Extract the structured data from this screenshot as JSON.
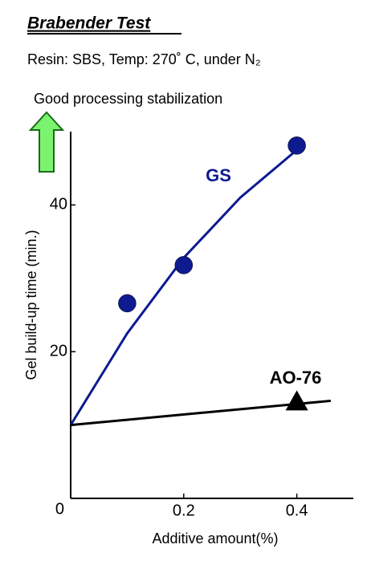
{
  "chart_data": {
    "type": "scatter",
    "title": "Brabender Test",
    "subtitle": "Resin: SBS, Temp: 270˚ C, under N₂",
    "annotation": "Good processing stabilization",
    "x_label": "Additive amount(%)",
    "y_label": "Gel build-up time (min.)",
    "xlim": [
      0,
      0.5
    ],
    "ylim": [
      0,
      50
    ],
    "xticks": [
      0.2,
      0.4
    ],
    "yticks": [
      0,
      20,
      40
    ],
    "series": [
      {
        "name": "GS",
        "color": "#0d1a90",
        "marker": "circle",
        "x": [
          0.1,
          0.2,
          0.4
        ],
        "values": [
          26.6,
          31.8,
          48.1
        ],
        "fit_x": [
          0,
          0.1,
          0.2,
          0.3,
          0.4
        ],
        "fit_values": [
          10,
          22.5,
          32.8,
          41,
          47.5
        ]
      },
      {
        "name": "AO-76",
        "color": "#000000",
        "marker": "triangle",
        "x": [
          0.4
        ],
        "values": [
          13.2
        ],
        "fit_x": [
          0,
          0.46
        ],
        "fit_values": [
          10,
          13.3
        ]
      }
    ]
  }
}
